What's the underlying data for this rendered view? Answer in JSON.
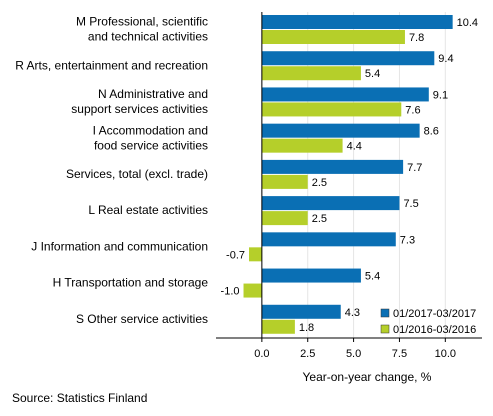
{
  "chart_data": {
    "type": "bar",
    "orientation": "horizontal",
    "categories": [
      [
        "M Professional, scientific",
        "and technical activities"
      ],
      [
        "R Arts, entertainment and recreation"
      ],
      [
        "N Administrative and",
        "support services activities"
      ],
      [
        "I Accommodation and",
        "food service activities"
      ],
      [
        "Services, total (excl. trade)"
      ],
      [
        "L Real estate activities"
      ],
      [
        "J Information and communication"
      ],
      [
        "H Transportation and storage"
      ],
      [
        "S Other service activities"
      ]
    ],
    "series": [
      {
        "name": "01/2017-03/2017",
        "values": [
          10.4,
          9.4,
          9.1,
          8.6,
          7.7,
          7.5,
          7.3,
          5.4,
          4.3
        ],
        "labels": [
          "10.4",
          "9.4",
          "9.1",
          "8.6",
          "7.7",
          "7.5",
          "7.3",
          "5.4",
          "4.3"
        ]
      },
      {
        "name": "01/2016-03/2016",
        "values": [
          7.8,
          5.4,
          7.6,
          4.4,
          2.5,
          2.5,
          -0.7,
          -1.0,
          1.8
        ],
        "labels": [
          "7.8",
          "5.4",
          "7.6",
          "4.4",
          "2.5",
          "2.5",
          "-0.7",
          "-1.0",
          "1.8"
        ]
      }
    ],
    "xlabel": "Year-on-year change, %",
    "xlim": [
      -2.5,
      12.0
    ],
    "xticks": [
      "0.0",
      "2.5",
      "5.0",
      "7.5",
      "10.0"
    ],
    "grid": "vertical",
    "legend": "bottom-right",
    "colors": {
      "series_1": "#0a6fb4",
      "series_2": "#b5cf2a",
      "grid": "#ffffff",
      "axis": "#000000"
    }
  },
  "source": "Source: Statistics Finland"
}
